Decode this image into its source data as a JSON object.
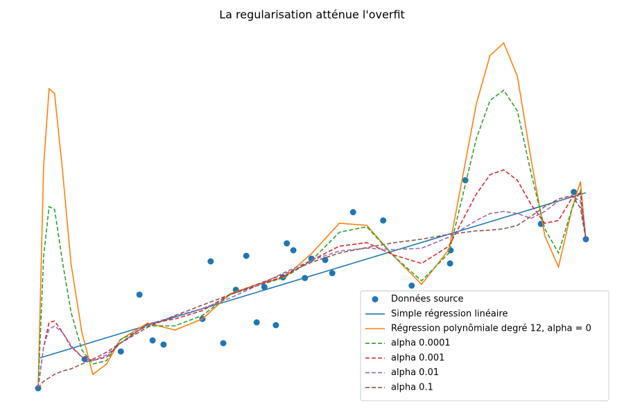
{
  "chart_data": {
    "type": "line",
    "title": "La regularisation atténue l'overfit",
    "xlim": [
      -0.5,
      10.5
    ],
    "ylim": [
      -0.3,
      10.3
    ],
    "axis_visible": false,
    "legend": "lower right",
    "series": [
      {
        "name": "Données source",
        "color": "#1f77b4",
        "marker": "o",
        "linestyle": "none",
        "x": [
          0,
          0.85,
          1.51,
          1.85,
          2.09,
          2.29,
          3.0,
          3.15,
          3.38,
          3.61,
          3.8,
          3.99,
          4.13,
          4.34,
          4.47,
          4.54,
          4.66,
          4.87,
          4.99,
          5.24,
          5.37,
          5.75,
          6.3,
          6.82,
          7.52,
          7.53,
          7.8,
          9.18,
          9.78,
          10
        ],
        "values": [
          0,
          0.84,
          1.06,
          2.7,
          1.38,
          1.26,
          2.0,
          3.66,
          1.3,
          2.84,
          3.82,
          1.9,
          2.92,
          1.82,
          3.2,
          4.18,
          3.98,
          3.18,
          3.74,
          3.7,
          3.32,
          5.08,
          4.84,
          2.96,
          3.6,
          3.98,
          6.0,
          4.74,
          5.66,
          4.3
        ]
      },
      {
        "name": "Simple régression linéaire",
        "color": "#1f77b4",
        "linestyle": "solid",
        "x": [
          0,
          10
        ],
        "values": [
          0.86,
          5.64
        ]
      },
      {
        "name": "Régression polynômiale degré 12, alpha = 0",
        "color": "#ff7f0e",
        "linestyle": "solid",
        "x": [
          0,
          0.1,
          0.2,
          0.3,
          0.45,
          0.6,
          0.8,
          1.0,
          1.25,
          1.5,
          2.0,
          2.5,
          3.0,
          3.5,
          4.0,
          4.5,
          5.0,
          5.5,
          6.0,
          6.5,
          7.0,
          7.5,
          8.0,
          8.25,
          8.5,
          8.75,
          9.0,
          9.25,
          9.5,
          9.75,
          9.9,
          10
        ],
        "values": [
          0,
          6.4,
          8.64,
          8.5,
          6.2,
          3.6,
          1.6,
          0.4,
          0.7,
          1.4,
          1.88,
          1.68,
          2.0,
          2.72,
          3.0,
          3.2,
          3.9,
          4.76,
          4.7,
          3.8,
          3.0,
          4.0,
          8.2,
          9.6,
          9.96,
          9.0,
          6.6,
          4.4,
          3.5,
          5.2,
          5.96,
          4.3
        ]
      },
      {
        "name": "alpha 0.0001",
        "color": "#2ca02c",
        "linestyle": "dashed",
        "x": [
          0,
          0.1,
          0.2,
          0.3,
          0.45,
          0.6,
          0.8,
          1.0,
          1.25,
          1.5,
          2.0,
          2.5,
          3.0,
          3.5,
          4.0,
          4.5,
          5.0,
          5.5,
          6.0,
          6.5,
          7.0,
          7.5,
          8.0,
          8.25,
          8.5,
          8.75,
          9.0,
          9.25,
          9.5,
          9.75,
          9.9,
          10
        ],
        "values": [
          0,
          3.8,
          5.24,
          5.16,
          3.6,
          2.2,
          1.1,
          0.7,
          0.8,
          1.4,
          1.8,
          1.8,
          2.1,
          2.7,
          2.96,
          3.2,
          3.7,
          4.5,
          4.66,
          3.8,
          3.1,
          3.9,
          7.2,
          8.3,
          8.6,
          8.0,
          6.2,
          4.6,
          3.9,
          5.2,
          5.7,
          4.3
        ]
      },
      {
        "name": "alpha 0.001",
        "color": "#d62728",
        "linestyle": "dashed",
        "x": [
          0,
          0.1,
          0.2,
          0.3,
          0.45,
          0.6,
          0.8,
          1.0,
          1.25,
          1.5,
          2.0,
          2.5,
          3.0,
          3.5,
          4.0,
          4.5,
          5.0,
          5.5,
          6.0,
          6.5,
          7.0,
          7.5,
          8.0,
          8.25,
          8.5,
          8.75,
          9.0,
          9.25,
          9.5,
          9.75,
          9.9,
          10
        ],
        "values": [
          0,
          1.2,
          1.9,
          1.94,
          1.6,
          1.2,
          0.9,
          0.8,
          0.9,
          1.3,
          1.86,
          2.0,
          2.24,
          2.7,
          2.96,
          3.24,
          3.7,
          4.1,
          4.2,
          3.84,
          3.6,
          4.1,
          5.6,
          6.16,
          6.3,
          6.0,
          5.3,
          4.76,
          4.84,
          5.5,
          5.64,
          4.3
        ]
      },
      {
        "name": "alpha 0.01",
        "color": "#9467bd",
        "linestyle": "dashed",
        "x": [
          0,
          0.1,
          0.2,
          0.3,
          0.45,
          0.6,
          0.8,
          1.0,
          1.25,
          1.5,
          2.0,
          2.5,
          3.0,
          3.5,
          4.0,
          4.5,
          5.0,
          5.5,
          6.0,
          6.5,
          7.0,
          7.5,
          8.0,
          8.25,
          8.5,
          8.75,
          9.0,
          9.25,
          9.5,
          9.75,
          9.9,
          10
        ],
        "values": [
          0,
          1.2,
          1.7,
          1.8,
          1.6,
          1.24,
          0.9,
          0.8,
          0.96,
          1.3,
          1.84,
          2.08,
          2.3,
          2.6,
          2.96,
          3.34,
          3.7,
          3.96,
          4.04,
          4.0,
          4.04,
          4.36,
          4.84,
          5.04,
          5.1,
          5.04,
          4.9,
          5.1,
          5.4,
          5.54,
          5.4,
          4.3
        ]
      },
      {
        "name": "alpha 0.1",
        "color": "#8c564b",
        "linestyle": "dashed",
        "x": [
          0,
          0.1,
          0.2,
          0.3,
          0.45,
          0.6,
          0.8,
          1.0,
          1.25,
          1.5,
          2.0,
          2.5,
          3.0,
          3.5,
          4.0,
          4.5,
          5.0,
          5.5,
          6.0,
          6.5,
          7.0,
          7.5,
          8.0,
          8.25,
          8.5,
          8.75,
          9.0,
          9.25,
          9.5,
          9.75,
          9.9,
          10
        ],
        "values": [
          0,
          0.2,
          0.3,
          0.4,
          0.5,
          0.56,
          0.7,
          0.84,
          1.04,
          1.3,
          1.76,
          2.1,
          2.4,
          2.7,
          3.0,
          3.3,
          3.64,
          3.9,
          4.06,
          4.2,
          4.3,
          4.44,
          4.54,
          4.56,
          4.6,
          4.7,
          4.96,
          5.24,
          5.46,
          5.56,
          5.2,
          4.3
        ]
      }
    ]
  }
}
